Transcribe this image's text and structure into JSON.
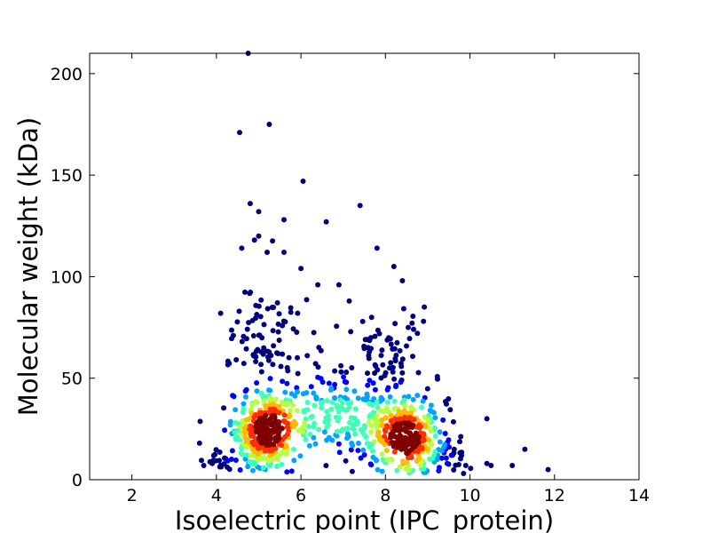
{
  "chart_data": {
    "type": "scatter",
    "xlabel": "Isoelectric point (IPC_protein)",
    "ylabel": "Molecular weight (kDa)",
    "xlim": [
      1,
      14
    ],
    "ylim": [
      0,
      210
    ],
    "x_ticks": [
      2,
      4,
      6,
      8,
      10,
      12,
      14
    ],
    "y_ticks": [
      0,
      50,
      100,
      150,
      200
    ],
    "grid": false,
    "colormap": [
      "#00007f",
      "#0000ff",
      "#00a4ff",
      "#40ffb7",
      "#b7ff40",
      "#ffb900",
      "#ff3000",
      "#7f0000"
    ],
    "density_peaks": [
      {
        "x": 5.2,
        "y": 24
      },
      {
        "x": 8.5,
        "y": 20
      }
    ],
    "outliers": [
      {
        "x": 4.75,
        "y": 210
      },
      {
        "x": 5.25,
        "y": 175
      },
      {
        "x": 4.55,
        "y": 171
      },
      {
        "x": 6.05,
        "y": 147
      },
      {
        "x": 4.8,
        "y": 136
      },
      {
        "x": 7.4,
        "y": 135
      },
      {
        "x": 5.0,
        "y": 132
      },
      {
        "x": 5.6,
        "y": 128
      },
      {
        "x": 6.6,
        "y": 127
      },
      {
        "x": 5.0,
        "y": 120
      },
      {
        "x": 4.9,
        "y": 118
      },
      {
        "x": 4.6,
        "y": 114
      },
      {
        "x": 7.8,
        "y": 114
      },
      {
        "x": 5.2,
        "y": 112
      },
      {
        "x": 5.6,
        "y": 112
      },
      {
        "x": 8.2,
        "y": 105
      },
      {
        "x": 6.0,
        "y": 104
      },
      {
        "x": 8.4,
        "y": 98
      },
      {
        "x": 6.4,
        "y": 96
      },
      {
        "x": 6.9,
        "y": 96
      },
      {
        "x": 4.1,
        "y": 82
      },
      {
        "x": 4.4,
        "y": 71
      },
      {
        "x": 8.9,
        "y": 78
      },
      {
        "x": 3.6,
        "y": 18
      },
      {
        "x": 3.7,
        "y": 7
      },
      {
        "x": 3.9,
        "y": 8
      },
      {
        "x": 10.4,
        "y": 30
      },
      {
        "x": 10.4,
        "y": 8
      },
      {
        "x": 10.5,
        "y": 7
      },
      {
        "x": 11.0,
        "y": 7
      },
      {
        "x": 11.3,
        "y": 15
      },
      {
        "x": 11.85,
        "y": 5
      },
      {
        "x": 9.9,
        "y": 7
      },
      {
        "x": 9.8,
        "y": 12
      }
    ]
  }
}
